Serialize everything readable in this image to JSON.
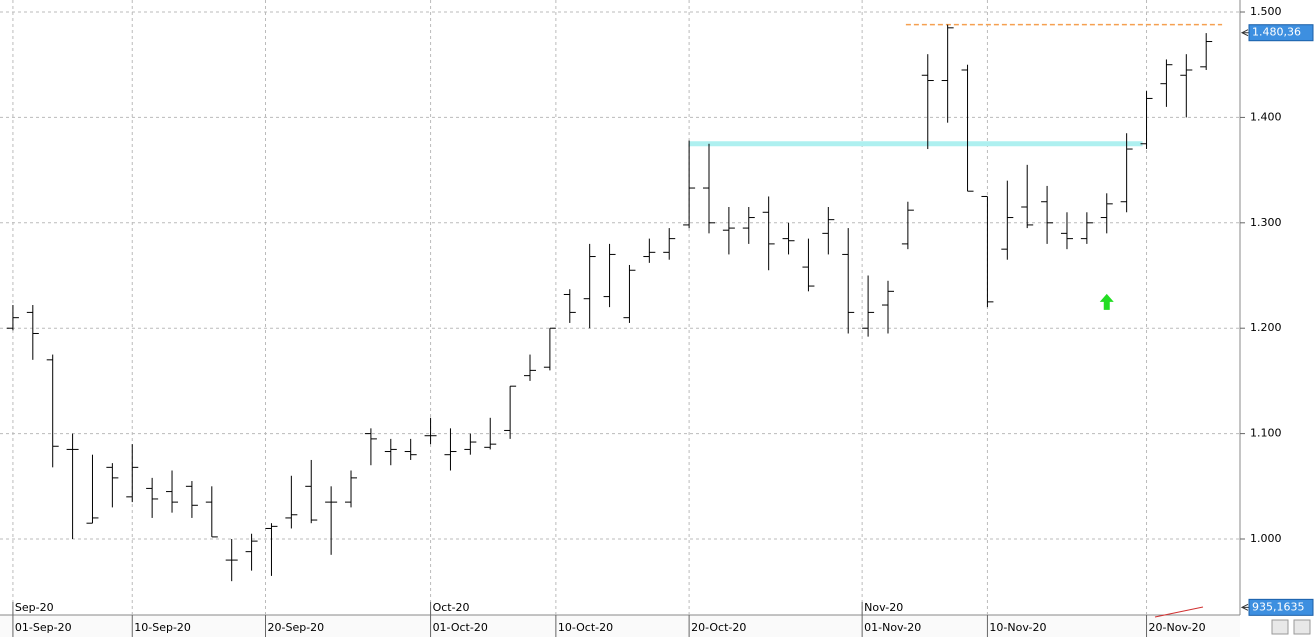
{
  "chart_data": {
    "type": "ohlc",
    "x": [
      0,
      1,
      2,
      3,
      4,
      5,
      6,
      7,
      8,
      9,
      10,
      11,
      12,
      13,
      14,
      15,
      16,
      17,
      18,
      19,
      20,
      21,
      22,
      23,
      24,
      25,
      26,
      27,
      28,
      29,
      30,
      31,
      32,
      33,
      34,
      35,
      36,
      37,
      38,
      39,
      40,
      41,
      42,
      43,
      44,
      45,
      46,
      47,
      48,
      49,
      50,
      51,
      52,
      53,
      54,
      55,
      56,
      57,
      58,
      59,
      60
    ],
    "open": [
      1200,
      1215,
      1170,
      1085,
      1015,
      1068,
      1040,
      1048,
      1045,
      1050,
      1035,
      980,
      988,
      1010,
      1020,
      1050,
      1035,
      1035,
      1100,
      1083,
      1083,
      1098,
      1080,
      1085,
      1087,
      1103,
      1155,
      1163,
      1232,
      1228,
      1230,
      1210,
      1268,
      1272,
      1298,
      1333,
      1293,
      1295,
      1310,
      1285,
      1258,
      1290,
      1270,
      1200,
      1222,
      1280,
      1440,
      1435,
      1445,
      1325,
      1275,
      1315,
      1320,
      1290,
      1285,
      1305,
      1320,
      1375,
      1432,
      1440,
      1448
    ],
    "high": [
      1222,
      1222,
      1175,
      1100,
      1080,
      1072,
      1090,
      1058,
      1065,
      1055,
      1050,
      1000,
      1005,
      1015,
      1060,
      1075,
      1050,
      1065,
      1105,
      1095,
      1095,
      1115,
      1105,
      1100,
      1115,
      1145,
      1175,
      1200,
      1237,
      1280,
      1280,
      1260,
      1285,
      1295,
      1378,
      1375,
      1315,
      1315,
      1325,
      1300,
      1285,
      1315,
      1295,
      1250,
      1245,
      1320,
      1460,
      1488,
      1450,
      1325,
      1340,
      1355,
      1335,
      1310,
      1310,
      1328,
      1385,
      1425,
      1455,
      1460,
      1480
    ],
    "low": [
      1198,
      1170,
      1068,
      1000,
      1015,
      1030,
      1035,
      1020,
      1025,
      1020,
      1002,
      960,
      970,
      965,
      1010,
      1015,
      985,
      1030,
      1070,
      1070,
      1075,
      1090,
      1065,
      1080,
      1085,
      1095,
      1150,
      1160,
      1205,
      1200,
      1220,
      1205,
      1262,
      1265,
      1295,
      1290,
      1270,
      1280,
      1255,
      1270,
      1235,
      1270,
      1195,
      1192,
      1195,
      1275,
      1370,
      1395,
      1330,
      1220,
      1265,
      1295,
      1280,
      1275,
      1280,
      1290,
      1310,
      1370,
      1410,
      1400,
      1445
    ],
    "close": [
      1210,
      1195,
      1088,
      1085,
      1020,
      1058,
      1068,
      1038,
      1035,
      1032,
      1002,
      980,
      998,
      1012,
      1023,
      1018,
      1035,
      1058,
      1095,
      1085,
      1080,
      1098,
      1083,
      1092,
      1090,
      1145,
      1160,
      1200,
      1215,
      1268,
      1270,
      1255,
      1272,
      1285,
      1333,
      1300,
      1295,
      1305,
      1280,
      1283,
      1240,
      1303,
      1215,
      1215,
      1235,
      1312,
      1435,
      1485,
      1330,
      1225,
      1305,
      1298,
      1300,
      1285,
      1300,
      1318,
      1370,
      1418,
      1450,
      1445,
      1472
    ],
    "color": "#000000",
    "xlim": [
      -0.65,
      61.7
    ],
    "xticks": [
      {
        "value": 0,
        "label": "01-Sep-20"
      },
      {
        "value": 6,
        "label": "10-Sep-20"
      },
      {
        "value": 12.7,
        "label": "20-Sep-20"
      },
      {
        "value": 21,
        "label": "01-Oct-20"
      },
      {
        "value": 27.3,
        "label": "10-Oct-20"
      },
      {
        "value": 34,
        "label": "20-Oct-20"
      },
      {
        "value": 42.7,
        "label": "01-Nov-20"
      },
      {
        "value": 49,
        "label": "10-Nov-20"
      },
      {
        "value": 57,
        "label": "20-Nov-20"
      }
    ],
    "month_ticks": [
      {
        "value": 0,
        "label": "Sep-20"
      },
      {
        "value": 21,
        "label": "Oct-20"
      },
      {
        "value": 42.7,
        "label": "Nov-20"
      }
    ],
    "ylim": [
      927.9,
      1511.4
    ],
    "yticks": [
      {
        "value": 1000,
        "label": "1.000"
      },
      {
        "value": 1100,
        "label": "1.100"
      },
      {
        "value": 1200,
        "label": "1.200"
      },
      {
        "value": 1300,
        "label": "1.300"
      },
      {
        "value": 1400,
        "label": "1.400"
      },
      {
        "value": 1500,
        "label": "1.500"
      }
    ],
    "grid": true,
    "hlines": [
      {
        "value": 1488,
        "from": 44.9,
        "to": 60.8,
        "color": "#f5a050",
        "style": "dashed"
      },
      {
        "value": 1375,
        "from": 34,
        "to": 56.8,
        "color": "#aef0f0",
        "style": "band"
      }
    ],
    "arrow": {
      "x": 55,
      "value": 1225,
      "color": "#22dd22"
    },
    "price_tags": [
      {
        "value": 1480.36,
        "label": "1.480,36"
      },
      {
        "value": 935.1635,
        "label": "935,1635"
      }
    ]
  }
}
